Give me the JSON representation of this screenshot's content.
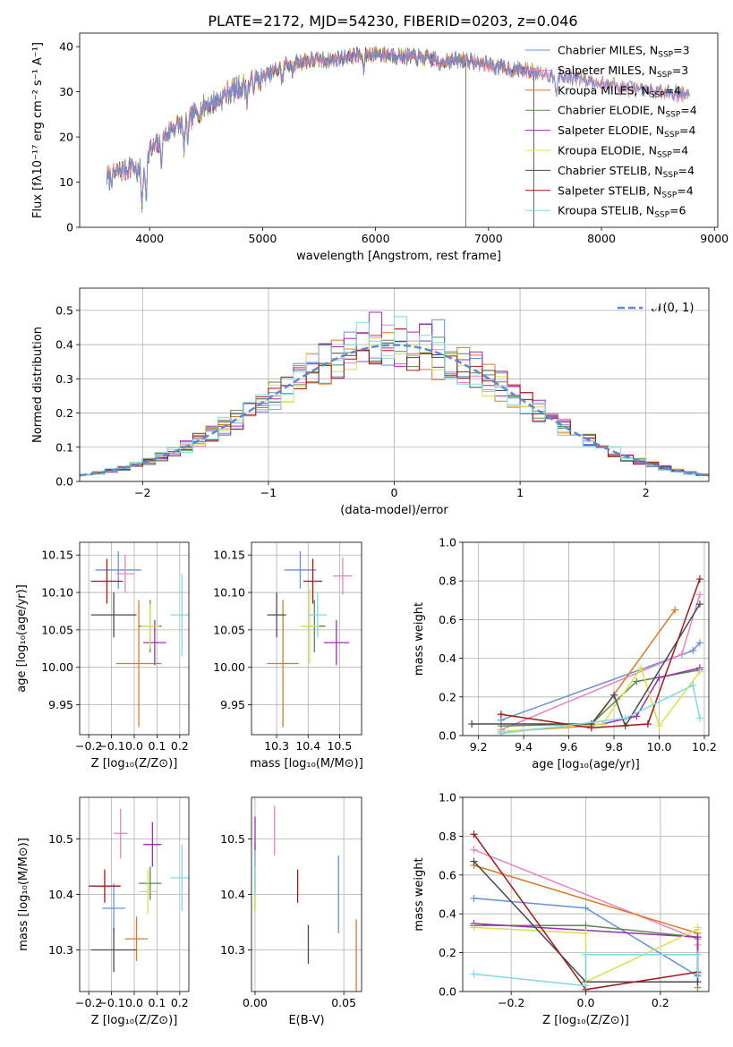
{
  "figure": {
    "title": "PLATE=2172, MJD=54230, FIBERID=0203, z=0.046"
  },
  "colors": [
    "#6a8fd8",
    "#e584c0",
    "#d97a2a",
    "#5a8a50",
    "#9b2fb0",
    "#d8e050",
    "#4a4a4a",
    "#a01818",
    "#80d8e0"
  ],
  "legend": {
    "labels": [
      "Chabrier MILES, N",
      "Salpeter MILES, N",
      "Kroupa MILES, N",
      "Chabrier ELODIE, N",
      "Salpeter ELODIE, N",
      "Kroupa ELODIE, N",
      "Chabrier STELIB, N",
      "Salpeter STELIB, N",
      "Kroupa STELIB, N"
    ],
    "sub": "SSP",
    "counts": [
      "=3",
      "=3",
      "=4",
      "=4",
      "=4",
      "=4",
      "=4",
      "=4",
      "=6"
    ]
  },
  "chart_data": [
    {
      "id": "spectrum",
      "type": "line",
      "title": "PLATE=2172, MJD=54230, FIBERID=0203, z=0.046",
      "xlabel": "wavelength [Angstrom, rest frame]",
      "ylabel": "Flux [fλ10⁻¹⁷ erg cm⁻² s⁻¹ A⁻¹]",
      "xlim": [
        3380,
        9030
      ],
      "ylim": [
        0,
        43
      ],
      "xticks": [
        4000,
        5000,
        6000,
        7000,
        8000,
        9000
      ],
      "yticks": [
        0,
        10,
        20,
        30,
        40
      ],
      "continuum": {
        "x": [
          3650,
          3700,
          3800,
          3850,
          3900,
          3950,
          4000,
          4100,
          4200,
          4300,
          4400,
          4500,
          4600,
          4700,
          4800,
          4900,
          5000,
          5200,
          5400,
          5600,
          5800,
          6000,
          6200,
          6400,
          6600,
          6800,
          7000,
          7200,
          7400,
          7600,
          7800,
          8000,
          8200,
          8400,
          8600,
          8800
        ],
        "y": [
          11,
          12,
          13,
          14,
          12,
          15,
          17,
          19,
          22,
          23,
          25,
          27,
          28,
          30,
          31,
          32,
          33,
          36,
          37,
          37,
          38,
          38.5,
          38,
          37.5,
          37,
          37,
          36,
          35,
          34.5,
          33.5,
          33,
          32,
          31,
          30,
          30,
          29
        ]
      },
      "series": [
        {
          "name": "Chabrier MILES, N_SSP=3",
          "range": [
            3620,
            8780
          ]
        },
        {
          "name": "Salpeter MILES, N_SSP=3",
          "range": [
            3620,
            8780
          ]
        },
        {
          "name": "Kroupa MILES, N_SSP=4",
          "range": [
            3620,
            8780
          ]
        },
        {
          "name": "Chabrier ELODIE, N_SSP=4",
          "range": [
            3620,
            6800
          ]
        },
        {
          "name": "Salpeter ELODIE, N_SSP=4",
          "range": [
            3620,
            6800
          ]
        },
        {
          "name": "Kroupa ELODIE, N_SSP=4",
          "range": [
            3620,
            6800
          ]
        },
        {
          "name": "Chabrier STELIB, N_SSP=4",
          "range": [
            3620,
            7400
          ]
        },
        {
          "name": "Salpeter STELIB, N_SSP=4",
          "range": [
            3620,
            7400
          ]
        },
        {
          "name": "Kroupa STELIB, N_SSP=6",
          "range": [
            3620,
            7400
          ]
        }
      ],
      "legend_position": "upper right"
    },
    {
      "id": "residuals",
      "type": "step",
      "xlabel": "(data-model)/error",
      "ylabel": "Normed distribution",
      "xlim": [
        -2.5,
        2.5
      ],
      "ylim": [
        0,
        0.565
      ],
      "xticks": [
        -2,
        -1,
        0,
        1,
        2
      ],
      "yticks": [
        0.0,
        0.1,
        0.2,
        0.3,
        0.4,
        0.5
      ],
      "gaussian_label": "𝒩(0, 1)",
      "bin_width": 0.1,
      "grid": true,
      "legend_position": "upper right"
    },
    {
      "id": "age_vs_Z",
      "type": "errorbar",
      "xlabel": "Z [log₁₀(Z/Z⊙)]",
      "ylabel": "age  [log₁₀(age/yr)]",
      "xlim": [
        -0.24,
        0.24
      ],
      "ylim": [
        9.91,
        10.167
      ],
      "xticks": [
        -0.2,
        -0.1,
        0.0,
        0.1,
        0.2
      ],
      "yticks": [
        9.95,
        10.0,
        10.05,
        10.1,
        10.15
      ],
      "points": [
        {
          "x": -0.07,
          "y": 10.13,
          "xerr": 0.1,
          "yerr": 0.025
        },
        {
          "x": -0.04,
          "y": 10.125,
          "xerr": 0.04,
          "yerr": 0.025
        },
        {
          "x": 0.02,
          "y": 10.005,
          "xerr": 0.1,
          "yerr": 0.085
        },
        {
          "x": 0.07,
          "y": 10.055,
          "xerr": 0.05,
          "yerr": 0.035
        },
        {
          "x": 0.09,
          "y": 10.033,
          "xerr": 0.05,
          "yerr": 0.03
        },
        {
          "x": 0.07,
          "y": 10.055,
          "xerr": 0.04,
          "yerr": 0.03
        },
        {
          "x": -0.09,
          "y": 10.07,
          "xerr": 0.1,
          "yerr": 0.03
        },
        {
          "x": -0.12,
          "y": 10.115,
          "xerr": 0.07,
          "yerr": 0.03
        },
        {
          "x": 0.21,
          "y": 10.07,
          "xerr": 0.05,
          "yerr": 0.055
        }
      ]
    },
    {
      "id": "age_vs_mass",
      "type": "errorbar",
      "xlabel": "mass [log₁₀(M/M⊙)]",
      "xlim": [
        10.22,
        10.57
      ],
      "ylim": [
        9.91,
        10.167
      ],
      "xticks": [
        10.3,
        10.4,
        10.5
      ],
      "yticks": [
        9.95,
        10.0,
        10.05,
        10.1,
        10.15
      ],
      "points": [
        {
          "x": 10.375,
          "y": 10.13,
          "xerr": 0.05,
          "yerr": 0.025
        },
        {
          "x": 10.51,
          "y": 10.122,
          "xerr": 0.03,
          "yerr": 0.025
        },
        {
          "x": 10.32,
          "y": 10.005,
          "xerr": 0.05,
          "yerr": 0.085
        },
        {
          "x": 10.42,
          "y": 10.055,
          "xerr": 0.035,
          "yerr": 0.035
        },
        {
          "x": 10.49,
          "y": 10.033,
          "xerr": 0.04,
          "yerr": 0.03
        },
        {
          "x": 10.405,
          "y": 10.055,
          "xerr": 0.03,
          "yerr": 0.05
        },
        {
          "x": 10.3,
          "y": 10.07,
          "xerr": 0.03,
          "yerr": 0.03
        },
        {
          "x": 10.415,
          "y": 10.115,
          "xerr": 0.03,
          "yerr": 0.03
        },
        {
          "x": 10.43,
          "y": 10.07,
          "xerr": 0.03,
          "yerr": 0.03
        }
      ]
    },
    {
      "id": "mass_weight_vs_age",
      "type": "line",
      "xlabel": "age  [log₁₀(age/yr)]",
      "ylabel": "mass weight",
      "xlim": [
        9.13,
        10.22
      ],
      "ylim": [
        0,
        1.0
      ],
      "xticks": [
        9.2,
        9.4,
        9.6,
        9.8,
        10.0,
        10.2
      ],
      "yticks": [
        0.0,
        0.2,
        0.4,
        0.6,
        0.8,
        1.0
      ],
      "series": [
        {
          "x": [
            9.3,
            10.15,
            10.18
          ],
          "y": [
            0.08,
            0.44,
            0.48
          ]
        },
        {
          "x": [
            9.3,
            10.1,
            10.18
          ],
          "y": [
            0.03,
            0.42,
            0.73
          ]
        },
        {
          "x": [
            9.3,
            9.7,
            10.07
          ],
          "y": [
            0.02,
            0.05,
            0.65
          ]
        },
        {
          "x": [
            9.3,
            9.7,
            9.9,
            10.18
          ],
          "y": [
            0.05,
            0.06,
            0.28,
            0.34
          ]
        },
        {
          "x": [
            9.3,
            9.75,
            9.9,
            10.0,
            10.18
          ],
          "y": [
            0.02,
            0.06,
            0.1,
            0.3,
            0.35
          ]
        },
        {
          "x": [
            9.3,
            9.75,
            9.92,
            10.0,
            10.18
          ],
          "y": [
            0.02,
            0.06,
            0.35,
            0.05,
            0.33
          ]
        },
        {
          "x": [
            9.17,
            9.7,
            9.8,
            9.85,
            10.18
          ],
          "y": [
            0.06,
            0.06,
            0.21,
            0.05,
            0.68
          ]
        },
        {
          "x": [
            9.3,
            9.7,
            9.95,
            10.18
          ],
          "y": [
            0.11,
            0.04,
            0.06,
            0.81
          ]
        },
        {
          "x": [
            9.3,
            9.85,
            10.15,
            10.18
          ],
          "y": [
            0.01,
            0.09,
            0.26,
            0.09
          ]
        }
      ]
    },
    {
      "id": "mass_vs_Z",
      "type": "errorbar",
      "xlabel": "Z [log₁₀(Z/Z⊙)]",
      "ylabel": "mass [log₁₀(M/M⊙)]",
      "xlim": [
        -0.24,
        0.24
      ],
      "ylim": [
        10.225,
        10.575
      ],
      "xticks": [
        -0.2,
        -0.1,
        0.0,
        0.1,
        0.2
      ],
      "yticks": [
        10.3,
        10.4,
        10.5
      ],
      "points": [
        {
          "x": -0.09,
          "y": 10.375,
          "xerr": 0.05,
          "yerr": 0.045
        },
        {
          "x": -0.06,
          "y": 10.51,
          "xerr": 0.03,
          "yerr": 0.045
        },
        {
          "x": 0.01,
          "y": 10.32,
          "xerr": 0.05,
          "yerr": 0.04
        },
        {
          "x": 0.07,
          "y": 10.42,
          "xerr": 0.05,
          "yerr": 0.03
        },
        {
          "x": 0.08,
          "y": 10.49,
          "xerr": 0.04,
          "yerr": 0.04
        },
        {
          "x": 0.06,
          "y": 10.405,
          "xerr": 0.04,
          "yerr": 0.04
        },
        {
          "x": -0.09,
          "y": 10.3,
          "xerr": 0.1,
          "yerr": 0.04
        },
        {
          "x": -0.13,
          "y": 10.415,
          "xerr": 0.07,
          "yerr": 0.03
        },
        {
          "x": 0.21,
          "y": 10.43,
          "xerr": 0.05,
          "yerr": 0.06
        }
      ]
    },
    {
      "id": "mass_vs_EBV",
      "type": "errorbar",
      "xlabel": "E(B-V)",
      "xlim": [
        -0.002,
        0.06
      ],
      "ylim": [
        10.225,
        10.575
      ],
      "xticks": [
        0.0,
        0.05
      ],
      "yticks": [
        10.3,
        10.4,
        10.5
      ],
      "points": [
        {
          "x": 0.047,
          "y": 10.4,
          "xerr": 0,
          "yerr": 0.07
        },
        {
          "x": 0.011,
          "y": 10.515,
          "xerr": 0,
          "yerr": 0.045
        },
        {
          "x": 0.057,
          "y": 10.29,
          "xerr": 0,
          "yerr": 0.065
        },
        {
          "x": 0.0,
          "y": 10.43,
          "xerr": 0,
          "yerr": 0.06
        },
        {
          "x": 0.0,
          "y": 10.495,
          "xerr": 0,
          "yerr": 0.045
        },
        {
          "x": 0.0,
          "y": 10.4,
          "xerr": 0,
          "yerr": 0.03
        },
        {
          "x": 0.03,
          "y": 10.31,
          "xerr": 0,
          "yerr": 0.035
        },
        {
          "x": 0.024,
          "y": 10.415,
          "xerr": 0,
          "yerr": 0.03
        },
        {
          "x": 0.0,
          "y": 10.44,
          "xerr": 0,
          "yerr": 0.04
        }
      ]
    },
    {
      "id": "mass_weight_vs_Z",
      "type": "line",
      "xlabel": "Z [log₁₀(Z/Z⊙)]",
      "ylabel": "mass weight",
      "xlim": [
        -0.33,
        0.33
      ],
      "ylim": [
        0,
        1.0
      ],
      "xticks": [
        -0.2,
        0.0,
        0.2
      ],
      "yticks": [
        0.0,
        0.2,
        0.4,
        0.6,
        0.8,
        1.0
      ],
      "series": [
        {
          "x": [
            -0.3,
            0.0,
            0.3,
            0.3
          ],
          "y": [
            0.48,
            0.43,
            0.08,
            0.27
          ]
        },
        {
          "x": [
            -0.3,
            0.3,
            0.3
          ],
          "y": [
            0.73,
            0.27,
            0.24
          ]
        },
        {
          "x": [
            -0.3,
            0.3,
            0.3
          ],
          "y": [
            0.65,
            0.3,
            0.02
          ]
        },
        {
          "x": [
            -0.3,
            0.0,
            0.3,
            0.3
          ],
          "y": [
            0.34,
            0.34,
            0.28,
            0.05
          ]
        },
        {
          "x": [
            -0.3,
            0.3,
            0.3
          ],
          "y": [
            0.35,
            0.28,
            0.09
          ]
        },
        {
          "x": [
            -0.3,
            0.0,
            0.0,
            0.3,
            0.3
          ],
          "y": [
            0.33,
            0.3,
            0.05,
            0.32,
            0.33
          ]
        },
        {
          "x": [
            -0.3,
            0.0,
            0.3
          ],
          "y": [
            0.67,
            0.05,
            0.05
          ]
        },
        {
          "x": [
            -0.3,
            0.0,
            0.3
          ],
          "y": [
            0.81,
            0.01,
            0.1
          ]
        },
        {
          "x": [
            -0.3,
            0.0,
            0.0,
            0.3,
            0.3
          ],
          "y": [
            0.09,
            0.03,
            0.19,
            0.19,
            0.09
          ]
        }
      ]
    }
  ]
}
